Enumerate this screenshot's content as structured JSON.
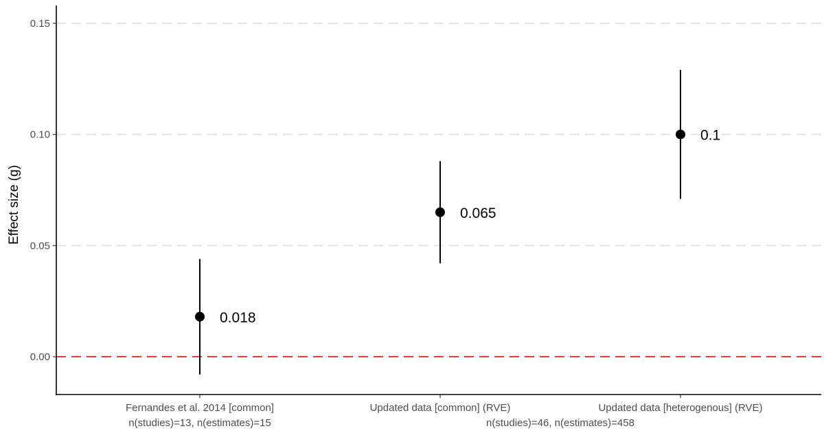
{
  "chart_data": {
    "type": "scatter",
    "title": "",
    "xlabel": "",
    "ylabel": "Effect size (g)",
    "ylim": [
      -0.017,
      0.158
    ],
    "yticks": [
      0.0,
      0.05,
      0.1,
      0.15
    ],
    "ytick_labels": [
      "0.00",
      "0.05",
      "0.10",
      "0.15"
    ],
    "grid": "horizontal major, dashed",
    "reference_line": {
      "y": 0.0,
      "color": "#e8392b",
      "style": "dashed"
    },
    "categories": [
      "Fernandes et al. 2014 [common]",
      "Updated data [common] (RVE)",
      "Updated data [heterogenous] (RVE)"
    ],
    "points": [
      {
        "category": "Fernandes et al. 2014 [common]",
        "estimate": 0.018,
        "ci_low": -0.008,
        "ci_high": 0.044,
        "label": "0.018"
      },
      {
        "category": "Updated data [common] (RVE)",
        "estimate": 0.065,
        "ci_low": 0.042,
        "ci_high": 0.088,
        "label": "0.065"
      },
      {
        "category": "Updated data [heterogenous] (RVE)",
        "estimate": 0.1,
        "ci_low": 0.071,
        "ci_high": 0.129,
        "label": "0.1"
      }
    ],
    "sublabels": [
      {
        "text": "n(studies)=13, n(estimates)=15",
        "under": "Fernandes et al. 2014 [common]"
      },
      {
        "text": "n(studies)=46, n(estimates)=458",
        "under": "between Updated data [common] (RVE) and Updated data [heterogenous] (RVE)"
      }
    ]
  }
}
